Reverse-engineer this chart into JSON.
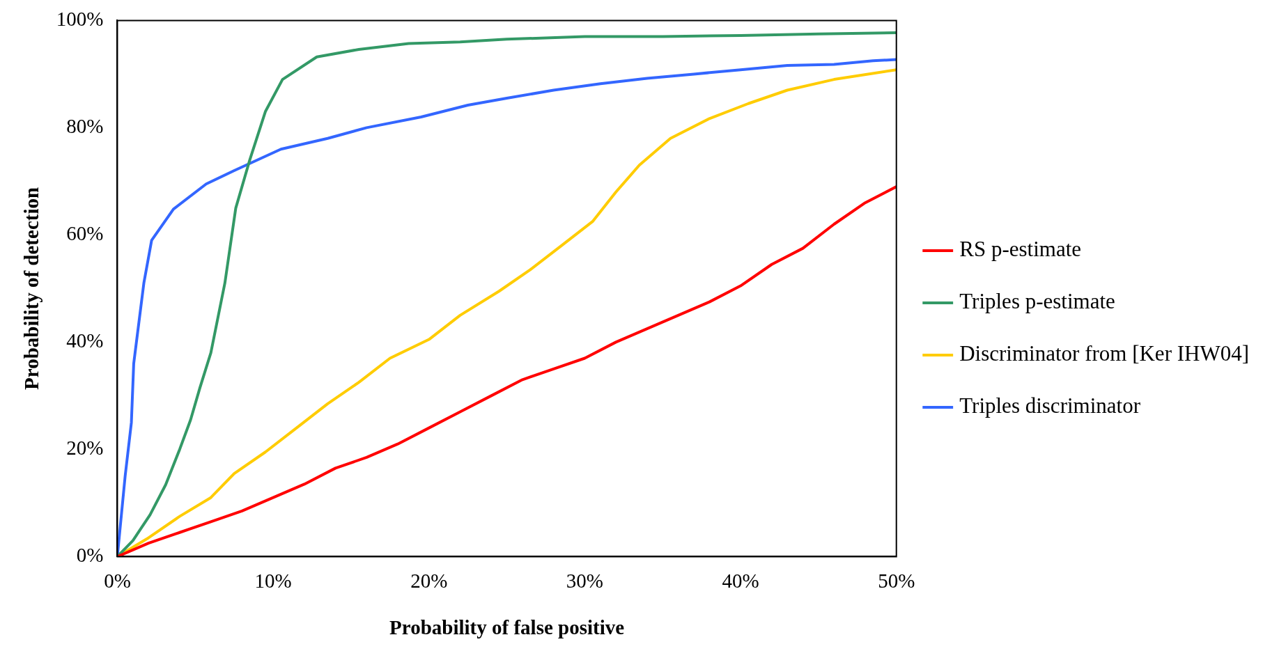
{
  "chart_data": {
    "type": "line",
    "xlabel": "Probability of false positive",
    "ylabel": "Probability of detection",
    "xlim": [
      0,
      50
    ],
    "ylim": [
      0,
      100
    ],
    "xticks": [
      {
        "value": 0,
        "label": "0%"
      },
      {
        "value": 10,
        "label": "10%"
      },
      {
        "value": 20,
        "label": "20%"
      },
      {
        "value": 30,
        "label": "30%"
      },
      {
        "value": 40,
        "label": "40%"
      },
      {
        "value": 50,
        "label": "50%"
      }
    ],
    "yticks": [
      {
        "value": 0,
        "label": "0%"
      },
      {
        "value": 20,
        "label": "20%"
      },
      {
        "value": 40,
        "label": "40%"
      },
      {
        "value": 60,
        "label": "60%"
      },
      {
        "value": 80,
        "label": "80%"
      },
      {
        "value": 100,
        "label": "100%"
      }
    ],
    "grid": false,
    "legend": "right",
    "marker": "none",
    "line_style": "solid",
    "series": [
      {
        "name": "RS p-estimate",
        "color": "#ff0000",
        "x": [
          0,
          2,
          4,
          6,
          8,
          10,
          12,
          14,
          16,
          18,
          20,
          22,
          24,
          26,
          28,
          30,
          32,
          34,
          36,
          38,
          40,
          42,
          44,
          46,
          48,
          50
        ],
        "values": [
          0,
          2.5,
          4.5,
          6.5,
          8.5,
          11,
          13.5,
          16.5,
          18.5,
          21,
          24,
          27,
          30,
          33,
          35,
          37,
          40,
          42.5,
          45,
          47.5,
          50.5,
          54.5,
          57.5,
          62,
          66,
          69
        ]
      },
      {
        "name": "Triples p-estimate",
        "color": "#339966",
        "x": [
          0,
          1,
          2.1,
          3.1,
          4,
          4.7,
          5.3,
          6,
          6.9,
          7.6,
          8.5,
          9.5,
          10.6,
          12.8,
          15.5,
          18.7,
          22,
          25,
          30,
          35,
          40,
          45,
          50
        ],
        "values": [
          0,
          3,
          7.8,
          13.4,
          20,
          25.5,
          31.5,
          38,
          51,
          65,
          74,
          83,
          89,
          93.2,
          94.6,
          95.7,
          96,
          96.5,
          97,
          97,
          97.2,
          97.5,
          97.7
        ]
      },
      {
        "name": "Discriminator from [Ker IHW04]",
        "color": "#ffcc00",
        "x": [
          0,
          2,
          4,
          6,
          7.5,
          9.5,
          11.5,
          13.5,
          15.5,
          17.5,
          20,
          22,
          24.5,
          26.5,
          28.5,
          30.5,
          32,
          33.5,
          35.5,
          38,
          40.5,
          43,
          46,
          50
        ],
        "values": [
          0,
          3.5,
          7.5,
          11,
          15.5,
          19.5,
          24,
          28.5,
          32.5,
          37,
          40.5,
          45,
          49.5,
          53.5,
          58,
          62.5,
          68,
          73,
          78,
          81.7,
          84.5,
          87,
          89,
          90.8
        ]
      },
      {
        "name": "Triples discriminator",
        "color": "#3366ff",
        "x": [
          0,
          0.5,
          0.9,
          1.05,
          1.7,
          2.2,
          3.6,
          5.7,
          7.5,
          10.5,
          13.5,
          16,
          19.5,
          22.5,
          25,
          28,
          31,
          34,
          37,
          40,
          43,
          46,
          48.5,
          50
        ],
        "values": [
          0,
          15,
          25,
          36,
          51,
          59,
          64.8,
          69.5,
          72,
          76,
          78,
          80,
          82,
          84.2,
          85.5,
          87,
          88.2,
          89.2,
          90,
          90.8,
          91.6,
          91.8,
          92.5,
          92.7
        ]
      }
    ]
  }
}
